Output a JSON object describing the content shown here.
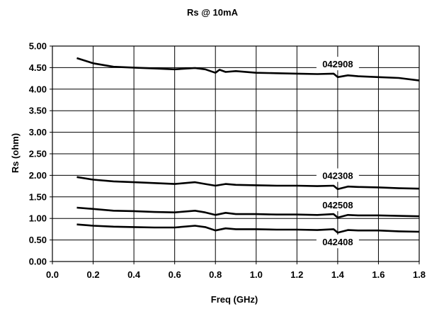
{
  "chart_data": {
    "type": "line",
    "title": "Rs @ 10mA",
    "xlabel": "Freq (GHz)",
    "ylabel": "Rs (ohm)",
    "xlim": [
      0.0,
      1.8
    ],
    "ylim": [
      0.0,
      5.0
    ],
    "xticks": [
      "0.0",
      "0.2",
      "0.4",
      "0.6",
      "0.8",
      "1.0",
      "1.2",
      "1.4",
      "1.6",
      "1.8"
    ],
    "yticks": [
      "0.00",
      "0.50",
      "1.00",
      "1.50",
      "2.00",
      "2.50",
      "3.00",
      "3.50",
      "4.00",
      "4.50",
      "5.00"
    ],
    "grid": true,
    "legend": "inline labels",
    "line_color": "#000000",
    "series": [
      {
        "name": "042908",
        "x": [
          0.12,
          0.2,
          0.3,
          0.4,
          0.5,
          0.6,
          0.7,
          0.75,
          0.8,
          0.82,
          0.85,
          0.9,
          1.0,
          1.1,
          1.2,
          1.3,
          1.38,
          1.4,
          1.45,
          1.5,
          1.6,
          1.7,
          1.8
        ],
        "y": [
          4.72,
          4.6,
          4.52,
          4.5,
          4.48,
          4.46,
          4.49,
          4.46,
          4.38,
          4.45,
          4.4,
          4.42,
          4.38,
          4.37,
          4.36,
          4.35,
          4.36,
          4.28,
          4.32,
          4.3,
          4.28,
          4.26,
          4.2
        ]
      },
      {
        "name": "042308",
        "x": [
          0.12,
          0.2,
          0.3,
          0.4,
          0.5,
          0.6,
          0.7,
          0.75,
          0.8,
          0.85,
          0.9,
          1.0,
          1.1,
          1.2,
          1.3,
          1.38,
          1.4,
          1.45,
          1.5,
          1.6,
          1.7,
          1.8
        ],
        "y": [
          1.96,
          1.9,
          1.86,
          1.84,
          1.82,
          1.8,
          1.84,
          1.8,
          1.76,
          1.8,
          1.78,
          1.77,
          1.76,
          1.76,
          1.75,
          1.76,
          1.68,
          1.74,
          1.73,
          1.72,
          1.7,
          1.69
        ]
      },
      {
        "name": "042508",
        "x": [
          0.12,
          0.2,
          0.3,
          0.4,
          0.5,
          0.6,
          0.7,
          0.75,
          0.8,
          0.85,
          0.9,
          1.0,
          1.1,
          1.2,
          1.3,
          1.38,
          1.4,
          1.45,
          1.5,
          1.6,
          1.7,
          1.8
        ],
        "y": [
          1.25,
          1.22,
          1.18,
          1.17,
          1.15,
          1.14,
          1.18,
          1.14,
          1.08,
          1.13,
          1.1,
          1.1,
          1.09,
          1.09,
          1.08,
          1.1,
          1.02,
          1.08,
          1.07,
          1.07,
          1.06,
          1.05
        ]
      },
      {
        "name": "042408",
        "x": [
          0.12,
          0.2,
          0.3,
          0.4,
          0.5,
          0.6,
          0.7,
          0.75,
          0.8,
          0.85,
          0.9,
          1.0,
          1.1,
          1.2,
          1.3,
          1.38,
          1.4,
          1.45,
          1.5,
          1.6,
          1.7,
          1.8
        ],
        "y": [
          0.86,
          0.83,
          0.81,
          0.8,
          0.79,
          0.79,
          0.83,
          0.8,
          0.72,
          0.77,
          0.75,
          0.75,
          0.74,
          0.74,
          0.73,
          0.75,
          0.67,
          0.73,
          0.72,
          0.72,
          0.7,
          0.69
        ]
      }
    ]
  }
}
